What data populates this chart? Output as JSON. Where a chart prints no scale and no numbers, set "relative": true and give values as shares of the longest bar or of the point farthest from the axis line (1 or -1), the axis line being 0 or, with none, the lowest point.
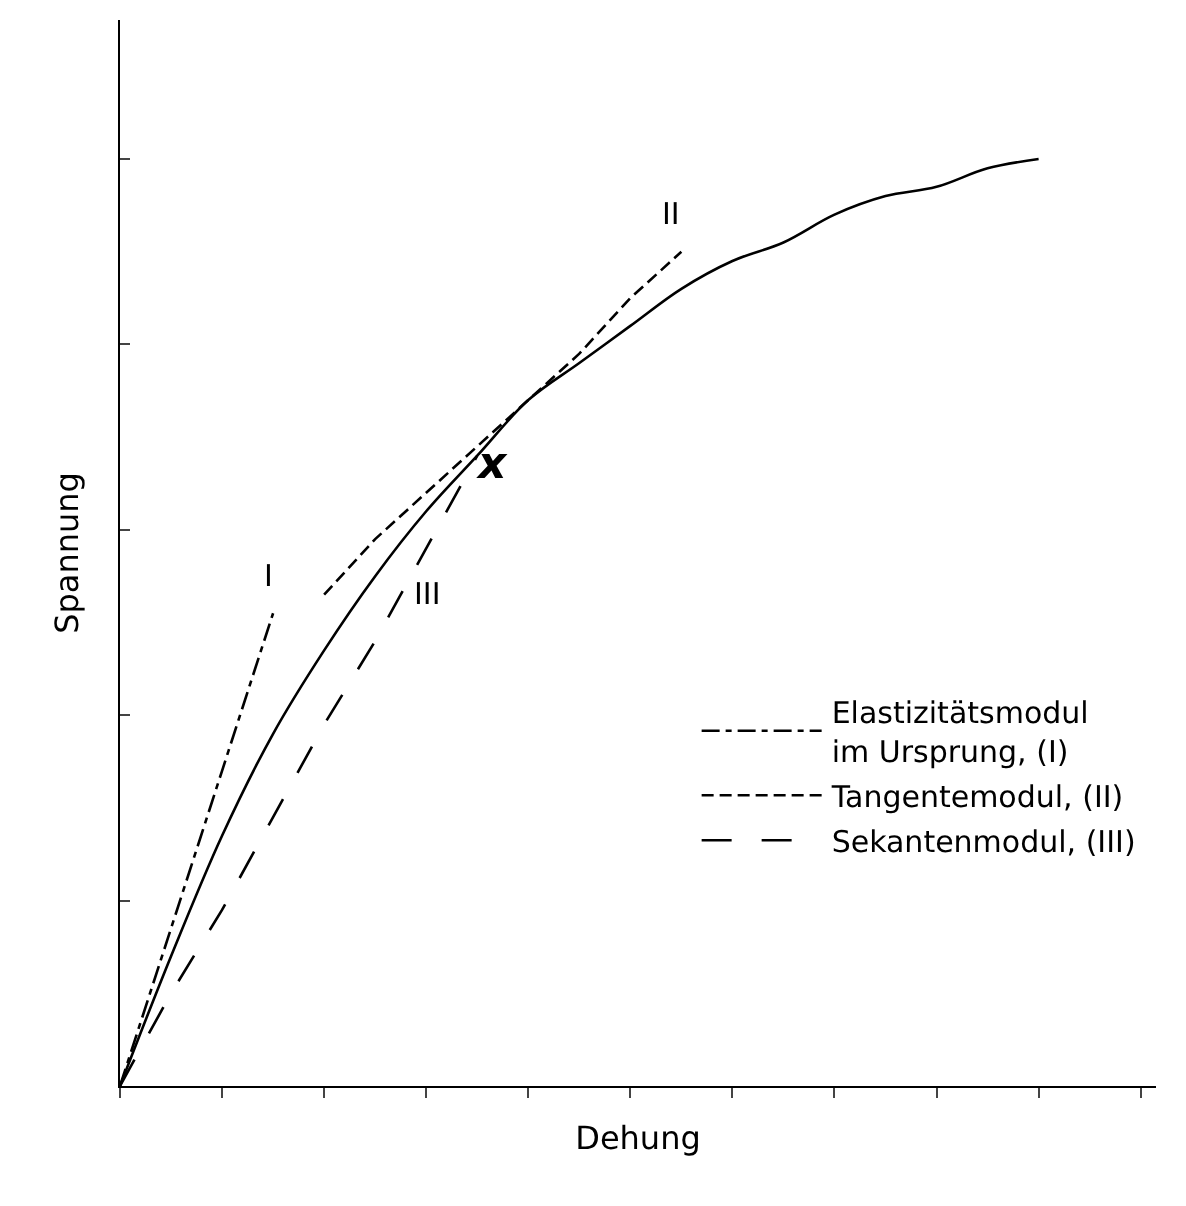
{
  "chart_data": {
    "type": "line",
    "relative": true,
    "xlabel": "Dehung",
    "ylabel": "Spannung",
    "categories": [
      null,
      null,
      null,
      null,
      null,
      null,
      null,
      null,
      null,
      null,
      null,
      null,
      null,
      null,
      null,
      null,
      null,
      null,
      null,
      null,
      null
    ],
    "series": [
      {
        "color": "#000000",
        "line_style": "solid",
        "values": [
          0,
          0.14,
          0.27,
          0.38,
          0.47,
          0.55,
          0.62,
          0.68,
          0.74,
          0.78,
          0.82,
          0.86,
          0.89,
          0.91,
          0.94,
          0.96,
          0.97,
          0.99,
          1,
          null,
          null
        ]
      },
      {
        "name": "Elastizitätsmodul\nim Ursprung, (I)",
        "color": "#000000",
        "line_style": "dashdot",
        "values": [
          0,
          0.17,
          0.34,
          0.51,
          null,
          null,
          null,
          null,
          null,
          null,
          null,
          null,
          null,
          null,
          null,
          null,
          null,
          null,
          null,
          null,
          null
        ]
      },
      {
        "name": "Tangentemodul, (II)",
        "color": "#000000",
        "line_style": "dashed",
        "values": [
          null,
          null,
          null,
          null,
          0.53,
          0.59,
          0.64,
          0.69,
          0.74,
          0.79,
          0.85,
          0.9,
          null,
          null,
          null,
          null,
          null,
          null,
          null,
          null,
          null
        ]
      },
      {
        "name": "Sekantenmodul, (III)",
        "color": "#000000",
        "line_style": "longdash",
        "values": [
          0,
          0.1,
          0.19,
          0.29,
          0.39,
          0.48,
          0.58,
          0.68,
          null,
          null,
          null,
          null,
          null,
          null,
          null,
          null,
          null,
          null,
          null,
          null,
          null
        ]
      }
    ],
    "annotations": [
      "I",
      "II",
      "III",
      "x"
    ],
    "legend": "bottom right",
    "marker": "none",
    "tick_labels": false
  }
}
